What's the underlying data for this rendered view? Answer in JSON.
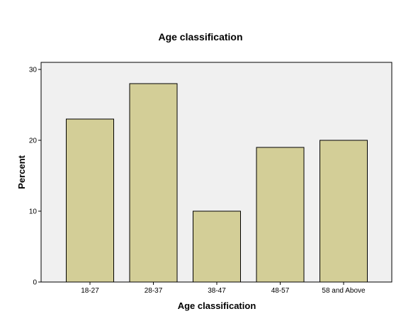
{
  "chart_data": {
    "type": "bar",
    "title": "Age classification",
    "xlabel": "Age classification",
    "ylabel": "Percent",
    "categories": [
      "18-27",
      "28-37",
      "38-47",
      "48-57",
      "58 and Above"
    ],
    "values": [
      23,
      28,
      10,
      19,
      20
    ],
    "ylim": [
      0,
      31
    ],
    "yticks": [
      0,
      10,
      20,
      30
    ],
    "grid": false,
    "colors": {
      "bar_fill": "#d3ce97",
      "bar_stroke": "#000000",
      "plot_background": "#f0f0f0",
      "plot_border": "#000000"
    }
  }
}
